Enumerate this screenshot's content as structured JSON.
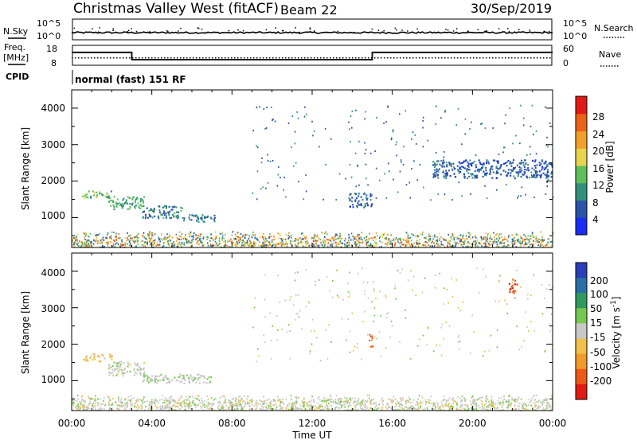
{
  "header": {
    "station": "Christmas Valley West (fitACF)",
    "beam": "Beam 22",
    "date": "30/Sep/2019"
  },
  "nsky_panel": {
    "left_label": "N.Sky",
    "right_label": "N.Search",
    "left_ticks": [
      "10^5",
      "10^0"
    ],
    "right_ticks": [
      "10^5",
      "10^0"
    ]
  },
  "freq_panel": {
    "left_label_1": "Freq.",
    "left_label_2": "[MHz]",
    "right_label": "Nave",
    "left_ticks": [
      "18",
      "8"
    ],
    "right_ticks": [
      "60",
      "0"
    ],
    "freq_segments": [
      {
        "start_h": 0,
        "end_h": 3.0,
        "mhz": 14.5
      },
      {
        "start_h": 3.0,
        "end_h": 15.0,
        "mhz": 10.8
      },
      {
        "start_h": 15.0,
        "end_h": 24.0,
        "mhz": 14.5
      }
    ],
    "nave_dotted": 22
  },
  "cpid": {
    "label": "CPID",
    "mode": "normal (fast) 151 RF"
  },
  "x_axis": {
    "label": "Time UT",
    "ticks": [
      "00:00",
      "04:00",
      "08:00",
      "12:00",
      "16:00",
      "20:00",
      "00:00"
    ],
    "range_h": [
      0,
      24
    ]
  },
  "power_panel": {
    "ylabel": "Slant Range [km]",
    "yticks": [
      "1000",
      "2000",
      "3000",
      "4000"
    ],
    "colorbar_label": "Power [dB]",
    "colorbar_ticks": [
      "4",
      "8",
      "12",
      "16",
      "20",
      "24",
      "28"
    ],
    "colors": [
      "#1b2df0",
      "#2a52a6",
      "#33907c",
      "#5fbf5a",
      "#e8d44d",
      "#f2a02a",
      "#ea6316",
      "#e01a14"
    ]
  },
  "velocity_panel": {
    "ylabel": "Slant Range [km]",
    "yticks": [
      "1000",
      "2000",
      "3000",
      "4000"
    ],
    "colorbar_label": "Velocity [m s^-1]",
    "colorbar_ticks": [
      "200",
      "100",
      "50",
      "15",
      "-15",
      "-50",
      "-100",
      "-200"
    ],
    "colors": [
      "#2a3fb5",
      "#2a6fa6",
      "#2f9a5e",
      "#74c94e",
      "#c8c8c8",
      "#f0c04a",
      "#f29a2a",
      "#ea5a16",
      "#e01a14"
    ]
  },
  "chart_data": {
    "type": "heatmap",
    "x_unit": "hours UT",
    "y_unit": "km",
    "ylim": [
      180,
      4500
    ],
    "power_echo_regions": [
      {
        "t0": 0.5,
        "t1": 2.0,
        "r0": 1550,
        "r1": 1750,
        "db": 14
      },
      {
        "t0": 1.8,
        "t1": 3.6,
        "r0": 1250,
        "r1": 1600,
        "db": 12
      },
      {
        "t0": 3.5,
        "t1": 5.5,
        "r0": 1000,
        "r1": 1350,
        "db": 9
      },
      {
        "t0": 5.5,
        "t1": 7.2,
        "r0": 900,
        "r1": 1100,
        "db": 8
      },
      {
        "t0": 8.0,
        "t1": 10.5,
        "r0": 250,
        "r1": 350,
        "db": 20
      },
      {
        "t0": 13.8,
        "t1": 15.0,
        "r0": 1300,
        "r1": 1700,
        "db": 7
      },
      {
        "t0": 18.0,
        "t1": 24.0,
        "r0": 2100,
        "r1": 2600,
        "db": 6
      }
    ],
    "velocity_echo_regions": [
      {
        "t0": 0.5,
        "t1": 2.0,
        "r0": 1550,
        "r1": 1750,
        "v": -30
      },
      {
        "t0": 1.8,
        "t1": 3.6,
        "r0": 1150,
        "r1": 1550,
        "v": 0
      },
      {
        "t0": 3.5,
        "t1": 7.0,
        "r0": 950,
        "r1": 1200,
        "v": 5
      },
      {
        "t0": 14.8,
        "t1": 15.0,
        "r0": 1950,
        "r1": 2300,
        "v": -180
      },
      {
        "t0": 21.8,
        "t1": 22.2,
        "r0": 3400,
        "r1": 3800,
        "v": -190
      }
    ]
  }
}
